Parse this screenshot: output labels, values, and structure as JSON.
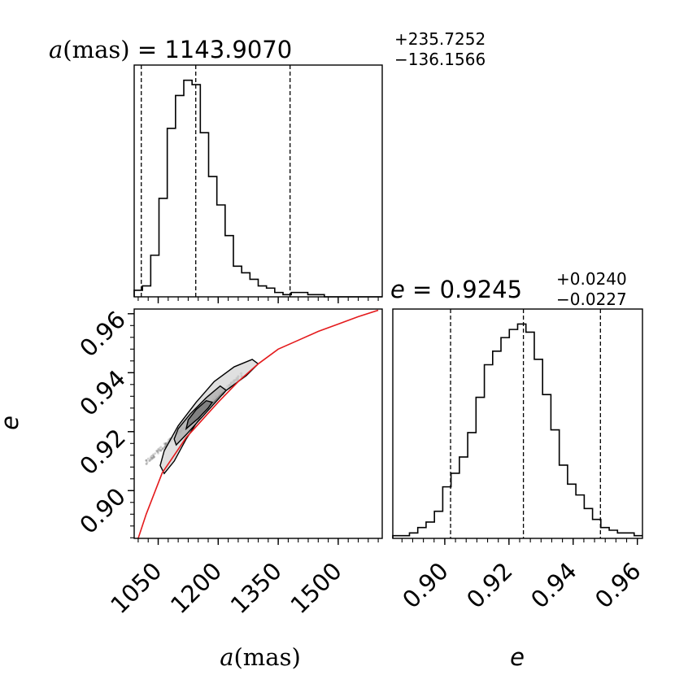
{
  "chart_data": {
    "type": "corner",
    "parameters": [
      {
        "id": "a",
        "title_var": "a",
        "title_unit": "(mas)",
        "title_eq": " = 1143.9070",
        "title_plus": "+235.7252",
        "title_minus": "−136.1566",
        "label_var": "a",
        "label_unit": "(mas)",
        "range": [
          990,
          1610
        ],
        "ticks": [
          "1050",
          "1200",
          "1350",
          "1500"
        ],
        "tick_values": [
          1050,
          1200,
          1350,
          1500
        ],
        "quantiles": [
          1007.75,
          1143.907,
          1379.632
        ],
        "histogram": {
          "edges": [
            990,
            1010.67,
            1031.33,
            1052.0,
            1072.67,
            1093.33,
            1114.0,
            1134.67,
            1155.33,
            1176.0,
            1196.67,
            1217.33,
            1238.0,
            1258.67,
            1279.33,
            1300.0,
            1320.67,
            1341.33,
            1362.0,
            1382.67,
            1403.33,
            1424.0,
            1444.67,
            1465.33,
            1486.0,
            1506.67,
            1527.33,
            1548.0,
            1568.67,
            1589.33,
            1610
          ],
          "counts": [
            3,
            5,
            19,
            45,
            77,
            92,
            99,
            97,
            75,
            55,
            42,
            28,
            14,
            11,
            8,
            5,
            4,
            2,
            1,
            2,
            2,
            1,
            1,
            0,
            0,
            0,
            0,
            0,
            0,
            0
          ]
        }
      },
      {
        "id": "e",
        "title_var": "e",
        "title_eq": " = 0.9245",
        "title_plus": "+0.0240",
        "title_minus": "−0.0227",
        "label_var": "e",
        "range": [
          0.8838,
          0.9616
        ],
        "ticks": [
          "0.90",
          "0.92",
          "0.94",
          "0.96"
        ],
        "tick_values": [
          0.9,
          0.92,
          0.94,
          0.96
        ],
        "quantiles": [
          0.9018,
          0.9245,
          0.9485
        ],
        "histogram": {
          "edges": [
            0.8838,
            0.88639,
            0.88899,
            0.89158,
            0.89417,
            0.89677,
            0.89936,
            0.90195,
            0.90455,
            0.90714,
            0.90973,
            0.91233,
            0.91492,
            0.91751,
            0.92011,
            0.9227,
            0.92529,
            0.92789,
            0.93048,
            0.93307,
            0.93567,
            0.93826,
            0.94085,
            0.94345,
            0.94604,
            0.94863,
            0.95123,
            0.95382,
            0.95641,
            0.95901,
            0.9616
          ],
          "counts": [
            1,
            1,
            2,
            4,
            6,
            10,
            19,
            24,
            30,
            39,
            52,
            64,
            69,
            74,
            77,
            79,
            76,
            66,
            53,
            40,
            27,
            20,
            16,
            11,
            7,
            4,
            3,
            2,
            2,
            1
          ]
        }
      }
    ],
    "scatter_ellipse": {
      "center": [
        1140,
        0.9245
      ],
      "spread": [
        50,
        0.006
      ]
    },
    "contours": [
      {
        "level": "outer",
        "points": [
          [
            1065,
            0.9058
          ],
          [
            1090,
            0.91
          ],
          [
            1120,
            0.9175
          ],
          [
            1160,
            0.926
          ],
          [
            1210,
            0.933
          ],
          [
            1270,
            0.939
          ],
          [
            1300,
            0.943
          ],
          [
            1285,
            0.9445
          ],
          [
            1240,
            0.942
          ],
          [
            1190,
            0.937
          ],
          [
            1145,
            0.93
          ],
          [
            1100,
            0.922
          ],
          [
            1065,
            0.9135
          ],
          [
            1055,
            0.9085
          ]
        ]
      },
      {
        "level": "middle",
        "points": [
          [
            1095,
            0.9155
          ],
          [
            1120,
            0.919
          ],
          [
            1160,
            0.925
          ],
          [
            1200,
            0.931
          ],
          [
            1220,
            0.934
          ],
          [
            1205,
            0.9355
          ],
          [
            1170,
            0.9315
          ],
          [
            1130,
            0.926
          ],
          [
            1100,
            0.921
          ],
          [
            1090,
            0.9175
          ]
        ]
      },
      {
        "level": "inner",
        "points": [
          [
            1120,
            0.921
          ],
          [
            1150,
            0.9245
          ],
          [
            1175,
            0.928
          ],
          [
            1185,
            0.93
          ],
          [
            1170,
            0.9305
          ],
          [
            1145,
            0.9275
          ],
          [
            1125,
            0.924
          ]
        ]
      }
    ],
    "model_curve": {
      "color": "#e41a1c",
      "points": [
        [
          1000,
          0.8838
        ],
        [
          1020,
          0.892
        ],
        [
          1040,
          0.899
        ],
        [
          1060,
          0.906
        ],
        [
          1090,
          0.912
        ],
        [
          1120,
          0.918
        ],
        [
          1160,
          0.924
        ],
        [
          1200,
          0.93
        ],
        [
          1250,
          0.937
        ],
        [
          1300,
          0.943
        ],
        [
          1350,
          0.948
        ],
        [
          1400,
          0.951
        ],
        [
          1450,
          0.954
        ],
        [
          1500,
          0.9565
        ],
        [
          1550,
          0.959
        ],
        [
          1600,
          0.9612
        ]
      ]
    }
  }
}
